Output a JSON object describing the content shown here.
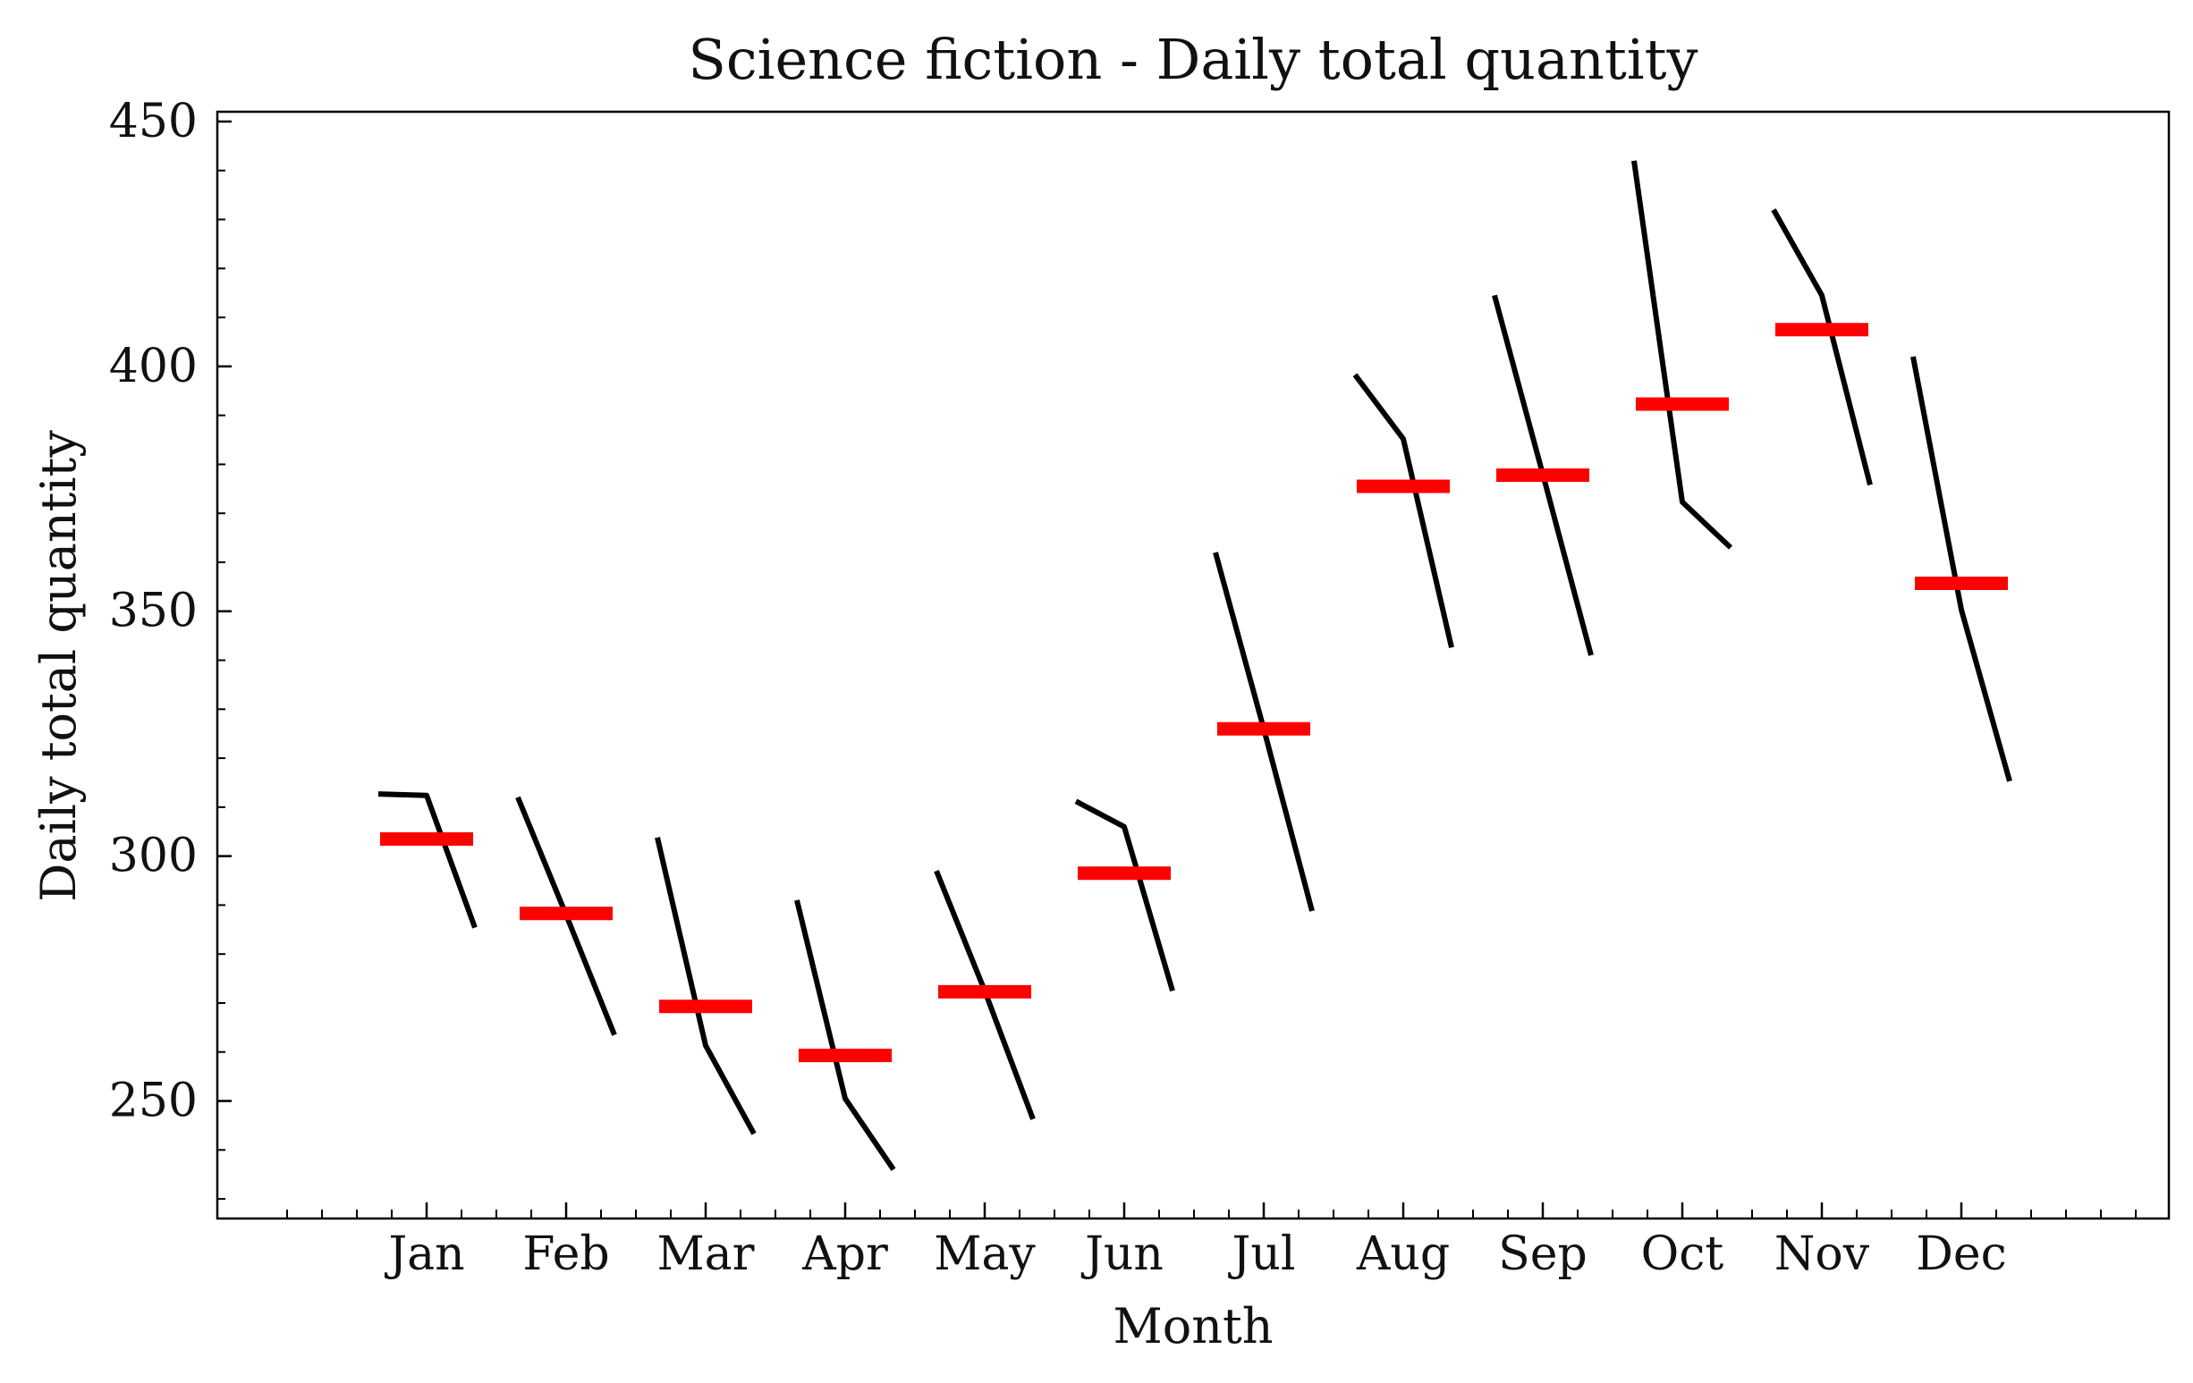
{
  "chart_data": {
    "type": "line",
    "title": "Science fiction - Daily total quantity",
    "xlabel": "Month",
    "ylabel": "Daily total quantity",
    "categories": [
      "Jan",
      "Feb",
      "Mar",
      "Apr",
      "May",
      "Jun",
      "Jul",
      "Aug",
      "Sep",
      "Oct",
      "Nov",
      "Dec"
    ],
    "ylim": [
      226,
      452
    ],
    "y_ticks": [
      250,
      300,
      350,
      400,
      450
    ],
    "grid": false,
    "subseries_color": "#000000",
    "mean_color": "#ff0000",
    "monthly_means": [
      303.5,
      288.3,
      269.3,
      259.3,
      272.3,
      296.5,
      326.0,
      375.5,
      377.8,
      392.3,
      407.5,
      355.7
    ],
    "monthly_subseries": [
      [
        312.7,
        312.4,
        285.4
      ],
      [
        312.0,
        288.0,
        263.5
      ],
      [
        303.8,
        261.3,
        243.3
      ],
      [
        291.0,
        250.5,
        236.0
      ],
      [
        297.0,
        272.5,
        246.3
      ],
      [
        311.2,
        306.0,
        272.5
      ],
      [
        362.0,
        326.0,
        288.8
      ],
      [
        398.3,
        385.2,
        342.6
      ],
      [
        414.5,
        378.0,
        341.0
      ],
      [
        442.0,
        372.3,
        363.0
      ],
      [
        432.0,
        414.5,
        375.8
      ],
      [
        402.0,
        350.3,
        315.3
      ]
    ]
  }
}
